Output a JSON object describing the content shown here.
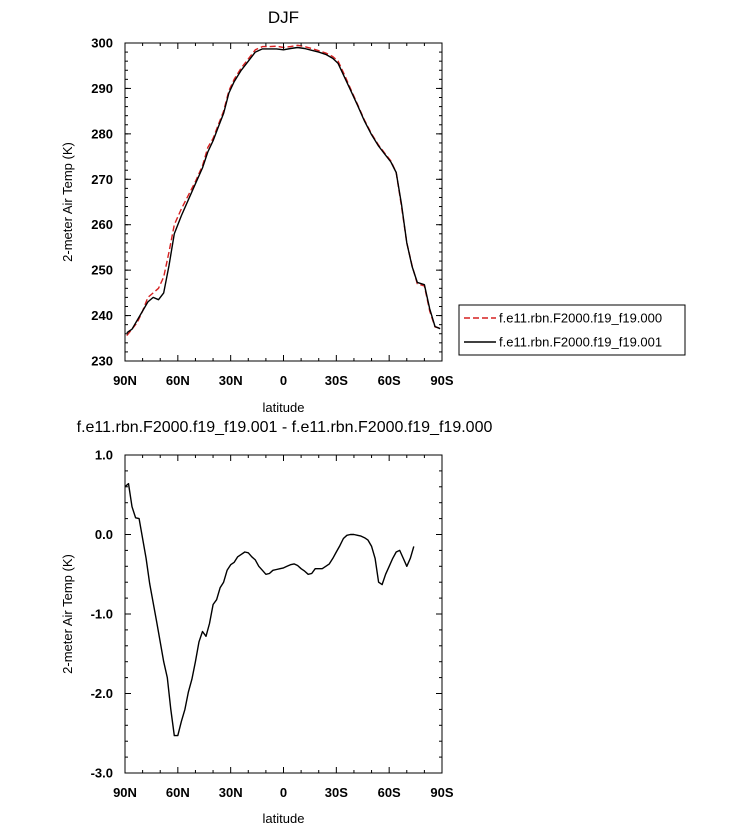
{
  "chart_data": [
    {
      "type": "line",
      "title": "DJF",
      "xlabel": "latitude",
      "ylabel": "2-meter Air Temp (K)",
      "xlim": [
        90,
        -90
      ],
      "ylim": [
        230,
        300
      ],
      "x_tick_values": [
        90,
        60,
        30,
        0,
        -30,
        -60,
        -90
      ],
      "x_tick_labels": [
        "90N",
        "60N",
        "30N",
        "0",
        "30S",
        "60S",
        "90S"
      ],
      "y_tick_values": [
        230,
        240,
        250,
        260,
        270,
        280,
        290,
        300
      ],
      "y_tick_labels": [
        "230",
        "240",
        "250",
        "260",
        "270",
        "280",
        "290",
        "300"
      ],
      "legend_position": "right",
      "series": [
        {
          "name": "f.e11.rbn.F2000.f19_f19.000",
          "color": "#d62020",
          "dash": "dashed",
          "points": [
            [
              89,
              235.6
            ],
            [
              86,
              237.0
            ],
            [
              83,
              238.5
            ],
            [
              80,
              241.0
            ],
            [
              77,
              244.0
            ],
            [
              74,
              245.0
            ],
            [
              71,
              246.0
            ],
            [
              68,
              248.5
            ],
            [
              65,
              254.0
            ],
            [
              62,
              260.0
            ],
            [
              58,
              263.5
            ],
            [
              54,
              266.5
            ],
            [
              50,
              269.5
            ],
            [
              46,
              273.0
            ],
            [
              43,
              277.0
            ],
            [
              40,
              279.0
            ],
            [
              37,
              282.0
            ],
            [
              34,
              285.0
            ],
            [
              31,
              289.5
            ],
            [
              28,
              292.0
            ],
            [
              24,
              294.5
            ],
            [
              20,
              296.5
            ],
            [
              16,
              298.5
            ],
            [
              12,
              299.2
            ],
            [
              8,
              299.2
            ],
            [
              4,
              299.3
            ],
            [
              0,
              299.0
            ],
            [
              -4,
              299.2
            ],
            [
              -8,
              299.5
            ],
            [
              -12,
              299.2
            ],
            [
              -16,
              298.8
            ],
            [
              -20,
              298.3
            ],
            [
              -24,
              297.8
            ],
            [
              -28,
              297.0
            ],
            [
              -31,
              296.0
            ],
            [
              -34,
              293.5
            ],
            [
              -38,
              290.0
            ],
            [
              -42,
              286.5
            ],
            [
              -46,
              283.0
            ],
            [
              -50,
              280.0
            ],
            [
              -54,
              277.5
            ],
            [
              -58,
              275.5
            ],
            [
              -61,
              274.0
            ],
            [
              -64,
              271.5
            ],
            [
              -67,
              264.0
            ],
            [
              -70,
              256.0
            ],
            [
              -73,
              251.0
            ],
            [
              -76,
              247.0
            ],
            [
              -80,
              246.5
            ],
            [
              -83,
              241.0
            ],
            [
              -86,
              237.5
            ],
            [
              -89,
              237.2
            ]
          ]
        },
        {
          "name": "f.e11.rbn.F2000.f19_f19.001",
          "color": "#000000",
          "dash": "solid",
          "points": [
            [
              89,
              236.2
            ],
            [
              86,
              237.0
            ],
            [
              83,
              239.0
            ],
            [
              80,
              241.0
            ],
            [
              77,
              243.0
            ],
            [
              74,
              244.0
            ],
            [
              71,
              243.5
            ],
            [
              68,
              245.0
            ],
            [
              65,
              251.0
            ],
            [
              62,
              258.0
            ],
            [
              58,
              262.0
            ],
            [
              54,
              265.5
            ],
            [
              50,
              269.0
            ],
            [
              46,
              272.5
            ],
            [
              43,
              276.0
            ],
            [
              40,
              278.5
            ],
            [
              37,
              281.5
            ],
            [
              34,
              284.5
            ],
            [
              31,
              289.0
            ],
            [
              28,
              291.5
            ],
            [
              24,
              294.0
            ],
            [
              20,
              296.0
            ],
            [
              16,
              298.0
            ],
            [
              12,
              298.7
            ],
            [
              8,
              298.7
            ],
            [
              4,
              298.7
            ],
            [
              0,
              298.5
            ],
            [
              -4,
              298.8
            ],
            [
              -8,
              299.0
            ],
            [
              -12,
              298.8
            ],
            [
              -16,
              298.4
            ],
            [
              -20,
              298.0
            ],
            [
              -24,
              297.5
            ],
            [
              -28,
              296.6
            ],
            [
              -31,
              295.5
            ],
            [
              -34,
              293.0
            ],
            [
              -38,
              289.7
            ],
            [
              -42,
              286.3
            ],
            [
              -46,
              282.8
            ],
            [
              -50,
              279.8
            ],
            [
              -54,
              277.3
            ],
            [
              -58,
              275.3
            ],
            [
              -61,
              273.8
            ],
            [
              -64,
              271.5
            ],
            [
              -67,
              264.5
            ],
            [
              -70,
              256.0
            ],
            [
              -73,
              250.8
            ],
            [
              -76,
              247.3
            ],
            [
              -80,
              246.8
            ],
            [
              -83,
              241.5
            ],
            [
              -86,
              237.6
            ],
            [
              -89,
              237.1
            ]
          ]
        }
      ]
    },
    {
      "type": "line",
      "title": "f.e11.rbn.F2000.f19_f19.001 - f.e11.rbn.F2000.f19_f19.000",
      "xlabel": "latitude",
      "ylabel": "2-meter Air Temp (K)",
      "xlim": [
        90,
        -90
      ],
      "ylim": [
        -3.0,
        1.0
      ],
      "x_tick_values": [
        90,
        60,
        30,
        0,
        -30,
        -60,
        -90
      ],
      "x_tick_labels": [
        "90N",
        "60N",
        "30N",
        "0",
        "30S",
        "60S",
        "90S"
      ],
      "y_tick_values": [
        -3.0,
        -2.0,
        -1.0,
        0.0,
        1.0
      ],
      "y_tick_labels": [
        "-3.0",
        "-2.0",
        "-1.0",
        "0.0",
        "1.0"
      ],
      "series": [
        {
          "color": "#000000",
          "dash": "solid",
          "points": [
            [
              90,
              0.6
            ],
            [
              88,
              0.64
            ],
            [
              86,
              0.35
            ],
            [
              84,
              0.21
            ],
            [
              82,
              0.2
            ],
            [
              80,
              -0.05
            ],
            [
              78,
              -0.3
            ],
            [
              76,
              -0.62
            ],
            [
              72,
              -1.1
            ],
            [
              68,
              -1.6
            ],
            [
              66,
              -1.8
            ],
            [
              64,
              -2.2
            ],
            [
              62,
              -2.53
            ],
            [
              60,
              -2.53
            ],
            [
              58,
              -2.35
            ],
            [
              56,
              -2.2
            ],
            [
              54,
              -1.98
            ],
            [
              52,
              -1.82
            ],
            [
              50,
              -1.6
            ],
            [
              48,
              -1.35
            ],
            [
              46,
              -1.22
            ],
            [
              44,
              -1.28
            ],
            [
              42,
              -1.12
            ],
            [
              40,
              -0.88
            ],
            [
              38,
              -0.82
            ],
            [
              36,
              -0.67
            ],
            [
              34,
              -0.6
            ],
            [
              32,
              -0.45
            ],
            [
              30,
              -0.38
            ],
            [
              28,
              -0.35
            ],
            [
              26,
              -0.28
            ],
            [
              24,
              -0.25
            ],
            [
              22,
              -0.22
            ],
            [
              20,
              -0.23
            ],
            [
              18,
              -0.28
            ],
            [
              16,
              -0.32
            ],
            [
              14,
              -0.4
            ],
            [
              12,
              -0.45
            ],
            [
              10,
              -0.5
            ],
            [
              8,
              -0.49
            ],
            [
              6,
              -0.45
            ],
            [
              4,
              -0.44
            ],
            [
              2,
              -0.43
            ],
            [
              0,
              -0.42
            ],
            [
              -2,
              -0.4
            ],
            [
              -4,
              -0.38
            ],
            [
              -6,
              -0.37
            ],
            [
              -8,
              -0.39
            ],
            [
              -10,
              -0.43
            ],
            [
              -12,
              -0.46
            ],
            [
              -14,
              -0.5
            ],
            [
              -16,
              -0.49
            ],
            [
              -18,
              -0.43
            ],
            [
              -20,
              -0.43
            ],
            [
              -22,
              -0.43
            ],
            [
              -24,
              -0.4
            ],
            [
              -26,
              -0.37
            ],
            [
              -28,
              -0.3
            ],
            [
              -30,
              -0.22
            ],
            [
              -32,
              -0.14
            ],
            [
              -34,
              -0.05
            ],
            [
              -36,
              -0.01
            ],
            [
              -38,
              0.0
            ],
            [
              -40,
              0.0
            ],
            [
              -42,
              -0.01
            ],
            [
              -44,
              -0.02
            ],
            [
              -46,
              -0.04
            ],
            [
              -48,
              -0.07
            ],
            [
              -50,
              -0.15
            ],
            [
              -52,
              -0.3
            ],
            [
              -54,
              -0.6
            ],
            [
              -56,
              -0.63
            ],
            [
              -58,
              -0.5
            ],
            [
              -60,
              -0.4
            ],
            [
              -62,
              -0.3
            ],
            [
              -64,
              -0.22
            ],
            [
              -66,
              -0.2
            ],
            [
              -68,
              -0.3
            ],
            [
              -70,
              -0.4
            ],
            [
              -72,
              -0.3
            ],
            [
              -74,
              -0.15
            ]
          ]
        }
      ]
    }
  ]
}
